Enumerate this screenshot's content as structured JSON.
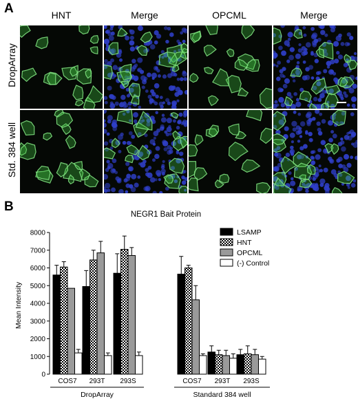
{
  "panel_a": {
    "letter": "A",
    "columns": [
      "HNT",
      "Merge",
      "OPCML",
      "Merge"
    ],
    "rows": [
      "DropArray",
      "Std. 384 well"
    ]
  },
  "panel_b": {
    "letter": "B"
  },
  "colors": {
    "lsamp": "#000000",
    "hnt_pattern": "#000000",
    "opcml": "#9a9a9a",
    "control": "#ffffff",
    "cell_green": "#3fbf3f",
    "nucleus_blue": "#2f3fc8"
  },
  "chart_data": {
    "type": "bar",
    "title": "NEGR1 Bait Protein",
    "ylabel": "Mean Intensity",
    "xlabel": "",
    "ylim": [
      0,
      8000
    ],
    "yticks": [
      0,
      1000,
      2000,
      3000,
      4000,
      5000,
      6000,
      7000,
      8000
    ],
    "grid": false,
    "legend_position": "top-right",
    "groups": [
      {
        "label": "DropArray",
        "categories": [
          "COS7",
          "293T",
          "293S"
        ]
      },
      {
        "label": "Standard 384 well",
        "categories": [
          "COS7",
          "293T",
          "293S"
        ]
      }
    ],
    "categories": [
      "COS7",
      "293T",
      "293S",
      "COS7",
      "293T",
      "293S"
    ],
    "series": [
      {
        "name": "LSAMP",
        "values": [
          5600,
          4950,
          5700,
          5650,
          1250,
          1100
        ],
        "errors": [
          550,
          900,
          1100,
          1000,
          350,
          300
        ]
      },
      {
        "name": "HNT",
        "values": [
          6050,
          6450,
          7050,
          6000,
          1100,
          1150
        ],
        "errors": [
          300,
          550,
          750,
          150,
          250,
          450
        ]
      },
      {
        "name": "OPCML",
        "values": [
          4850,
          6850,
          6700,
          4200,
          1050,
          1100
        ],
        "errors": [
          0,
          650,
          450,
          800,
          300,
          300
        ]
      },
      {
        "name": "(-) Control",
        "values": [
          1200,
          1050,
          1050,
          1050,
          900,
          850
        ],
        "errors": [
          200,
          150,
          200,
          100,
          250,
          150
        ]
      }
    ]
  }
}
